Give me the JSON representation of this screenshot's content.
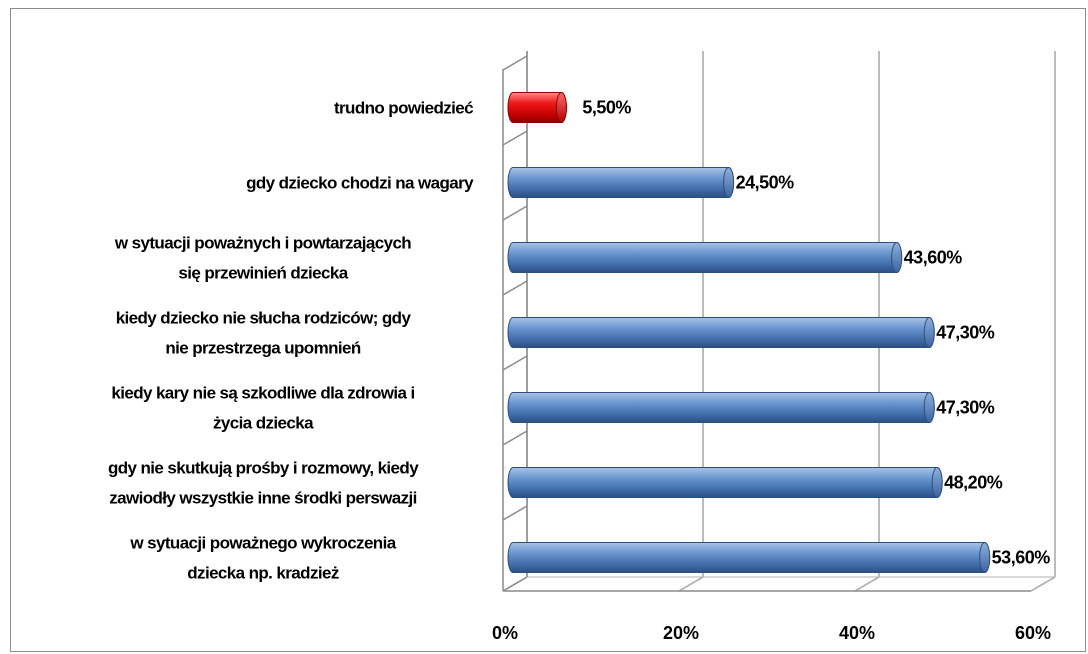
{
  "chart_data": {
    "type": "bar",
    "orientation": "horizontal",
    "categories": [
      [
        "trudno powiedzieć"
      ],
      [
        "gdy dziecko chodzi na wagary"
      ],
      [
        "w sytuacji poważnych i powtarzających",
        "się przewinień dziecka"
      ],
      [
        "kiedy dziecko nie słucha rodziców; gdy",
        "nie przestrzega upomnień"
      ],
      [
        "kiedy kary nie są szkodliwe dla zdrowia i",
        "życia dziecka"
      ],
      [
        "gdy nie skutkują prośby i rozmowy, kiedy",
        "zawiodły wszystkie inne środki perswazji"
      ],
      [
        "w sytuacji poważnego wykroczenia",
        "dziecka np. kradzież"
      ]
    ],
    "values": [
      5.5,
      24.5,
      43.6,
      47.3,
      47.3,
      48.2,
      53.6
    ],
    "value_labels": [
      "5,50%",
      "24,50%",
      "43,60%",
      "47,30%",
      "47,30%",
      "48,20%",
      "53,60%"
    ],
    "bar_colors": [
      "#e01010",
      "#4f81bd",
      "#4f81bd",
      "#4f81bd",
      "#4f81bd",
      "#4f81bd",
      "#4f81bd"
    ],
    "xlim": [
      0,
      60
    ],
    "x_ticks": [
      0,
      20,
      40,
      60
    ],
    "x_tick_labels": [
      "0%",
      "20%",
      "40%",
      "60%"
    ],
    "grid": true,
    "style": "3d-cylinder"
  }
}
